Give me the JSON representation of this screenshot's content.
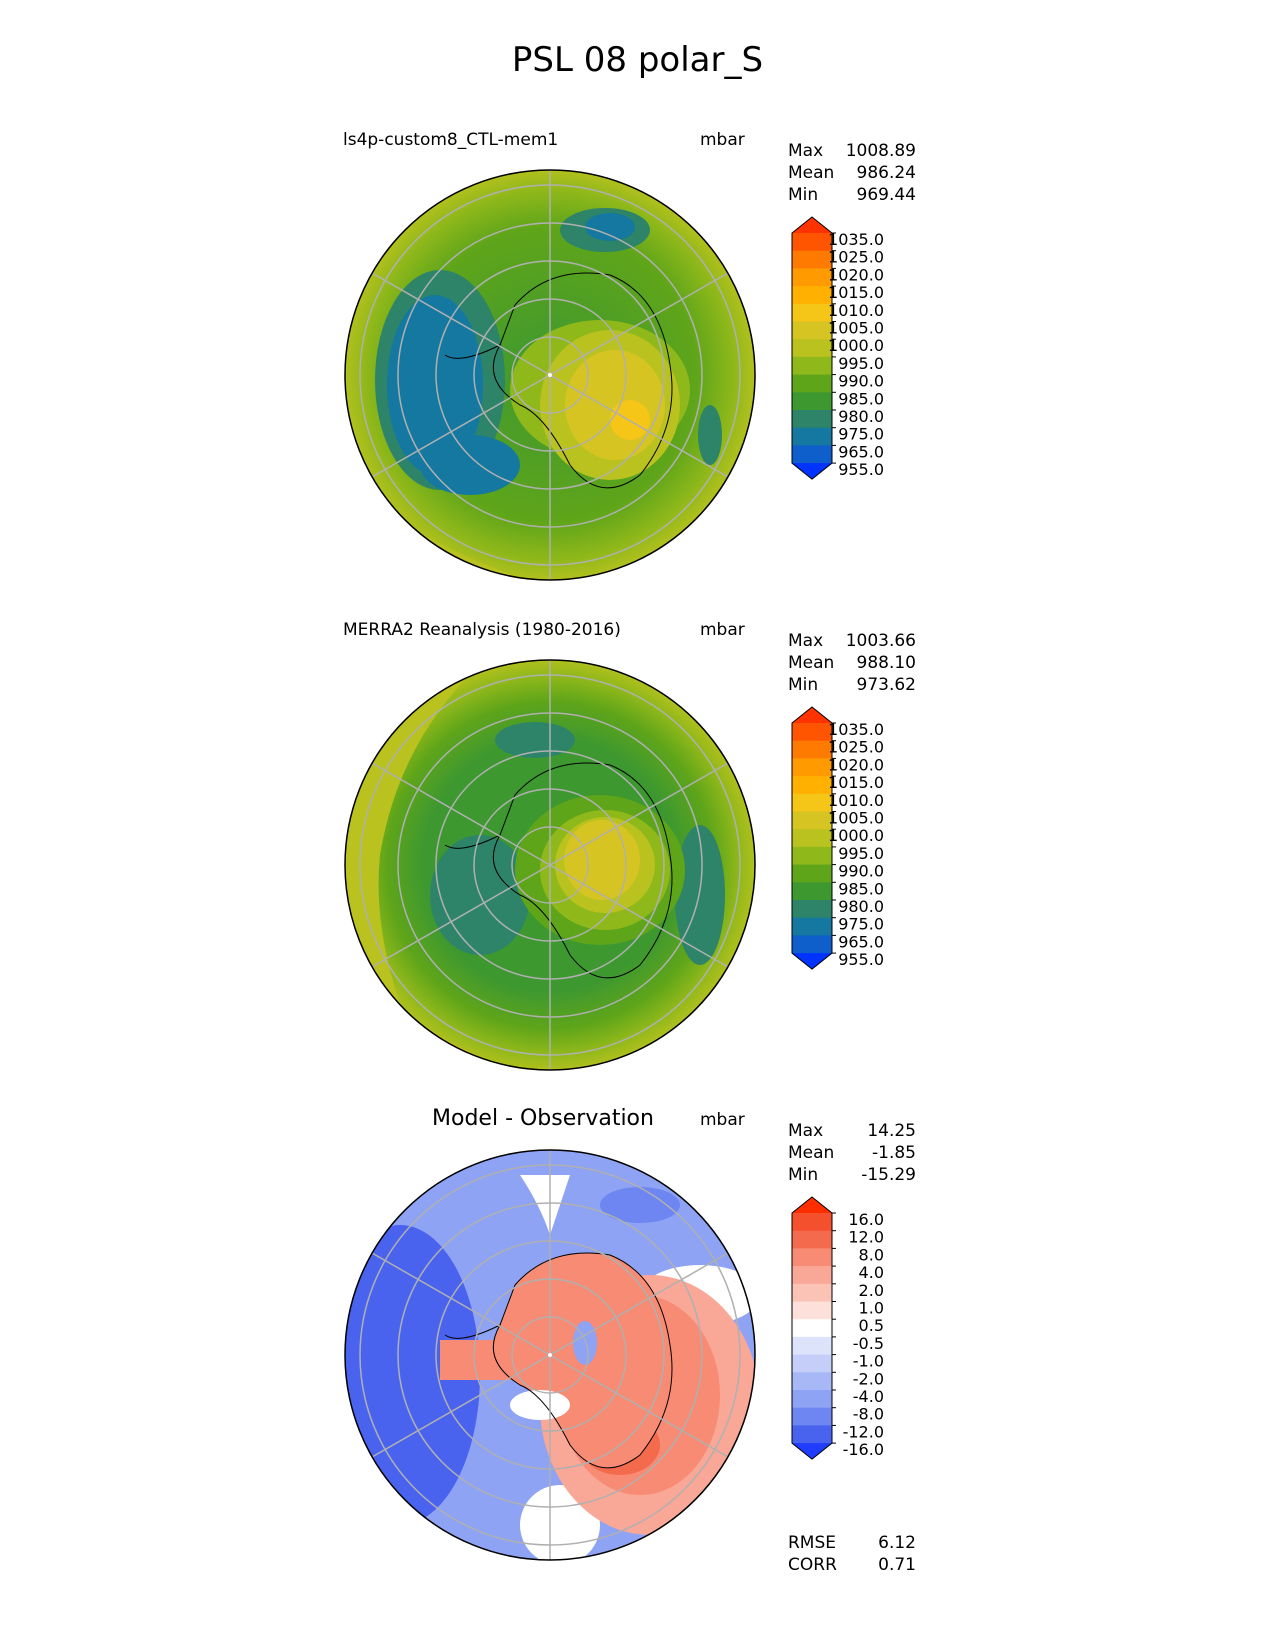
{
  "title": "PSL 08 polar_S",
  "panels": [
    {
      "title": "ls4p-custom8_CTL-mem1",
      "units": "mbar",
      "stats": [
        {
          "label": "Max",
          "value": "1008.89"
        },
        {
          "label": "Mean",
          "value": "986.24"
        },
        {
          "label": "Min",
          "value": "969.44"
        }
      ]
    },
    {
      "title": "MERRA2 Reanalysis (1980-2016)",
      "units": "mbar",
      "stats": [
        {
          "label": "Max",
          "value": "1003.66"
        },
        {
          "label": "Mean",
          "value": "988.10"
        },
        {
          "label": "Min",
          "value": "973.62"
        }
      ]
    },
    {
      "title": "Model - Observation",
      "units": "mbar",
      "stats": [
        {
          "label": "Max",
          "value": "14.25"
        },
        {
          "label": "Mean",
          "value": "-1.85"
        },
        {
          "label": "Min",
          "value": "-15.29"
        }
      ],
      "extra_stats": [
        {
          "label": "RMSE",
          "value": "6.12"
        },
        {
          "label": "CORR",
          "value": "0.71"
        }
      ]
    }
  ],
  "colorbars": {
    "abs": {
      "ticks": [
        "1035.0",
        "1025.0",
        "1020.0",
        "1015.0",
        "1010.0",
        "1005.0",
        "1000.0",
        "995.0",
        "990.0",
        "985.0",
        "980.0",
        "975.0",
        "965.0",
        "955.0"
      ],
      "colors": [
        "#ff3300",
        "#ff5500",
        "#ff7a00",
        "#ff9a00",
        "#ffb000",
        "#f5c518",
        "#d6c423",
        "#b9c21e",
        "#8fb81a",
        "#5fa51a",
        "#3d9830",
        "#2d8468",
        "#1478a0",
        "#0e5ecc",
        "#0033ff"
      ]
    },
    "diff": {
      "ticks": [
        "16.0",
        "12.0",
        "8.0",
        "4.0",
        "2.0",
        "1.0",
        "0.5",
        "-0.5",
        "-1.0",
        "-2.0",
        "-4.0",
        "-8.0",
        "-12.0",
        "-16.0"
      ],
      "colors": [
        "#ff2d00",
        "#f4502e",
        "#f46a4c",
        "#f78b74",
        "#f9a797",
        "#fbc2b6",
        "#fde0d9",
        "#ffffff",
        "#dde3fb",
        "#c4cef8",
        "#a8b8f6",
        "#8ea3f4",
        "#6d86f2",
        "#4a63ef",
        "#1f3cff"
      ]
    }
  },
  "chart_data": [
    {
      "type": "heatmap",
      "title": "ls4p-custom8_CTL-mem1",
      "units": "mbar",
      "projection": "polar_S",
      "max": 1008.89,
      "mean": 986.24,
      "min": 969.44
    },
    {
      "type": "heatmap",
      "title": "MERRA2 Reanalysis (1980-2016)",
      "units": "mbar",
      "projection": "polar_S",
      "max": 1003.66,
      "mean": 988.1,
      "min": 973.62
    },
    {
      "type": "heatmap",
      "title": "Model - Observation",
      "units": "mbar",
      "projection": "polar_S",
      "max": 14.25,
      "mean": -1.85,
      "min": -15.29,
      "rmse": 6.12,
      "corr": 0.71
    }
  ]
}
